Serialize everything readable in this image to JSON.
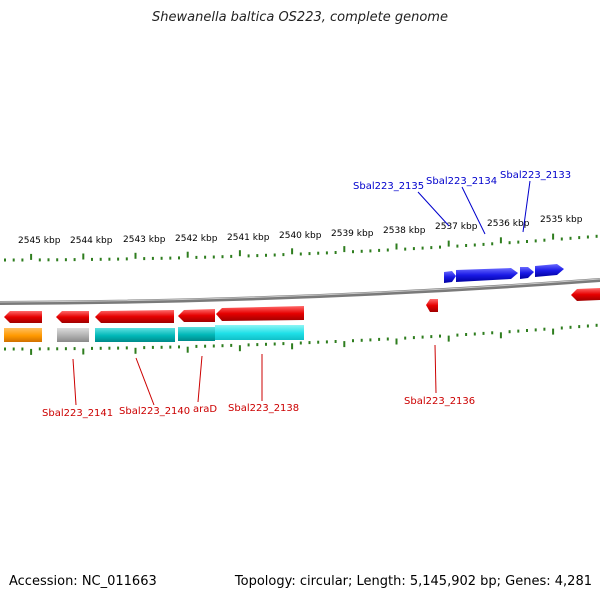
{
  "title": "Shewanella baltica OS223, complete genome",
  "footer": {
    "accession": "Accession: NC_011663",
    "summary": "Topology: circular; Length: 5,145,902 bp; Genes: 4,281"
  },
  "ruler": {
    "upper_ticks": [
      "2545 kbp",
      "2544 kbp",
      "2543 kbp",
      "2542 kbp",
      "2541 kbp",
      "2540 kbp",
      "2539 kbp",
      "2538 kbp",
      "2537 kbp",
      "2536 kbp",
      "2535 kbp"
    ]
  },
  "genes_forward": [
    "Sbal223_2135",
    "Sbal223_2134",
    "Sbal223_2133"
  ],
  "genes_reverse": [
    "Sbal223_2141",
    "Sbal223_2140",
    "araD",
    "Sbal223_2138",
    "Sbal223_2136"
  ],
  "colors": {
    "forward_gene": "#1a1ae6",
    "reverse_gene": "#e60000",
    "forward_label": "#0000cc",
    "reverse_label": "#cc0000",
    "tick": "#2e7d1e",
    "backbone": "#808080",
    "cds_cyan": "#00c8c8",
    "cds_orange": "#ff9900",
    "cds_gray": "#b0b0b0"
  }
}
